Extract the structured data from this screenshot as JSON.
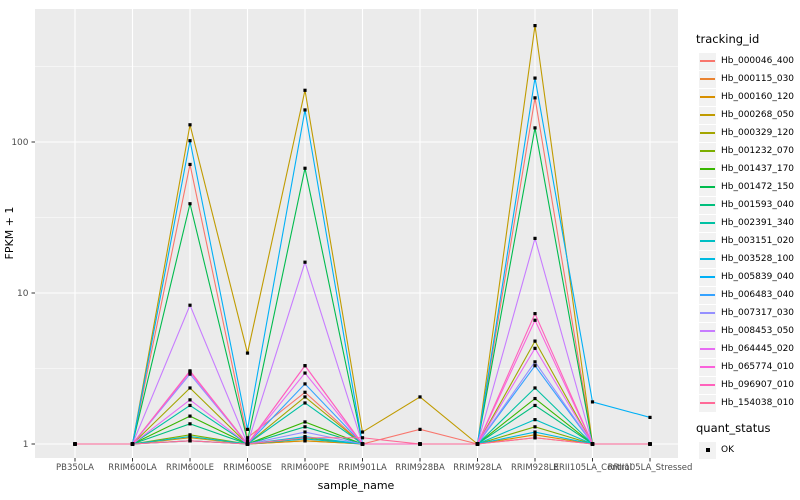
{
  "chart_data": {
    "type": "line",
    "title": "",
    "xlabel": "sample_name",
    "ylabel": "FPKM + 1",
    "y_scale": "log10",
    "y_ticks": [
      1,
      10,
      100
    ],
    "y_minor_gridlines": [
      3.162,
      31.62,
      316.2
    ],
    "ylim": [
      1,
      760
    ],
    "grid": true,
    "panel_bg": "#EBEBEB",
    "grid_color": "#FFFFFF",
    "tick_label_color": "#4D4D4D",
    "point_marker": {
      "shape": "square",
      "color": "#000000"
    },
    "categories": [
      "PB350LA",
      "RRIM600LA",
      "RRIM600LE",
      "RRIM600SE",
      "RRIM600PE",
      "RRIM901LA",
      "RRIM928BA",
      "RRIM928LA",
      "RRIM928LE",
      "RRII105LA_Control",
      "RRII105LA_Stressed"
    ],
    "series": [
      {
        "name": "Hb_000046_400",
        "color": "#F8766D",
        "values": [
          1,
          1,
          71,
          1.1,
          2.2,
          1,
          1.25,
          1,
          196,
          1,
          1
        ]
      },
      {
        "name": "Hb_000115_030",
        "color": "#EA8331",
        "values": [
          1,
          1,
          1.05,
          1,
          1.05,
          1,
          1,
          1,
          1.1,
          1,
          1
        ]
      },
      {
        "name": "Hb_000160_120",
        "color": "#D89000",
        "values": [
          1,
          1,
          1.1,
          1,
          1.05,
          1,
          1,
          1,
          1.15,
          1,
          1
        ]
      },
      {
        "name": "Hb_000268_050",
        "color": "#C09B00",
        "values": [
          1,
          1,
          130,
          4,
          220,
          1.2,
          2.05,
          1,
          590,
          1,
          1
        ]
      },
      {
        "name": "Hb_000329_120",
        "color": "#A3A500",
        "values": [
          1,
          1,
          2.35,
          1,
          2.05,
          1,
          1,
          1,
          4.8,
          1,
          1
        ]
      },
      {
        "name": "Hb_001232_070",
        "color": "#7CAE00",
        "values": [
          1,
          1,
          1.15,
          1,
          1.1,
          1,
          1,
          1,
          1.3,
          1,
          1
        ]
      },
      {
        "name": "Hb_001437_170",
        "color": "#39B600",
        "values": [
          1,
          1,
          1.53,
          1,
          1.4,
          1,
          1,
          1,
          2.0,
          1,
          1
        ]
      },
      {
        "name": "Hb_001472_150",
        "color": "#00BB4E",
        "values": [
          1,
          1,
          39,
          1.05,
          67,
          1,
          1,
          1,
          124,
          1,
          1
        ]
      },
      {
        "name": "Hb_001593_040",
        "color": "#00BF7D",
        "values": [
          1,
          1,
          1.36,
          1,
          1.3,
          1,
          1,
          1,
          1.8,
          1,
          1
        ]
      },
      {
        "name": "Hb_002391_340",
        "color": "#00C1A3",
        "values": [
          1,
          1,
          1.8,
          1,
          1.87,
          1,
          1,
          1,
          2.35,
          1,
          1
        ]
      },
      {
        "name": "Hb_003151_020",
        "color": "#00BFC4",
        "values": [
          1,
          1,
          1.12,
          1,
          1.08,
          1,
          1,
          1,
          1.45,
          1,
          1
        ]
      },
      {
        "name": "Hb_003528_100",
        "color": "#00BAE0",
        "values": [
          1,
          1,
          1.05,
          1,
          1.12,
          1,
          1,
          1,
          1.2,
          1,
          1
        ]
      },
      {
        "name": "Hb_005839_040",
        "color": "#00B0F6",
        "values": [
          1,
          1,
          102,
          1.25,
          163,
          1,
          1,
          1,
          265,
          1.9,
          1.5
        ]
      },
      {
        "name": "Hb_006483_040",
        "color": "#35A2FF",
        "values": [
          1,
          1,
          3.0,
          1,
          2.5,
          1,
          1,
          1,
          3.3,
          1,
          1
        ]
      },
      {
        "name": "Hb_007317_030",
        "color": "#9590FF",
        "values": [
          1,
          1,
          2.9,
          1,
          1.2,
          1,
          1,
          1,
          3.5,
          1,
          1
        ]
      },
      {
        "name": "Hb_008453_050",
        "color": "#C77CFF",
        "values": [
          1,
          1,
          8.3,
          1,
          16,
          1,
          1,
          1,
          23,
          1,
          1
        ]
      },
      {
        "name": "Hb_064445_020",
        "color": "#E76BF3",
        "values": [
          1,
          1,
          1.96,
          1,
          2.95,
          1,
          1,
          1,
          4.3,
          1,
          1
        ]
      },
      {
        "name": "Hb_065774_010",
        "color": "#FA62DB",
        "values": [
          1,
          1,
          3.0,
          1,
          3.3,
          1,
          1,
          1,
          6.6,
          1,
          1
        ]
      },
      {
        "name": "Hb_096907_010",
        "color": "#FF62BC",
        "values": [
          1,
          1,
          3.05,
          1,
          3.3,
          1,
          1,
          1,
          7.3,
          1,
          1
        ]
      },
      {
        "name": "Hb_154038_010",
        "color": "#FF6A98",
        "values": [
          1,
          1,
          1.05,
          1,
          1.1,
          1.1,
          1,
          1,
          1.1,
          1,
          1
        ]
      }
    ],
    "legend_position": "right"
  },
  "legend": {
    "tracking_title": "tracking_id",
    "quant_title": "quant_status",
    "quant_items": [
      {
        "label": "OK"
      }
    ]
  }
}
